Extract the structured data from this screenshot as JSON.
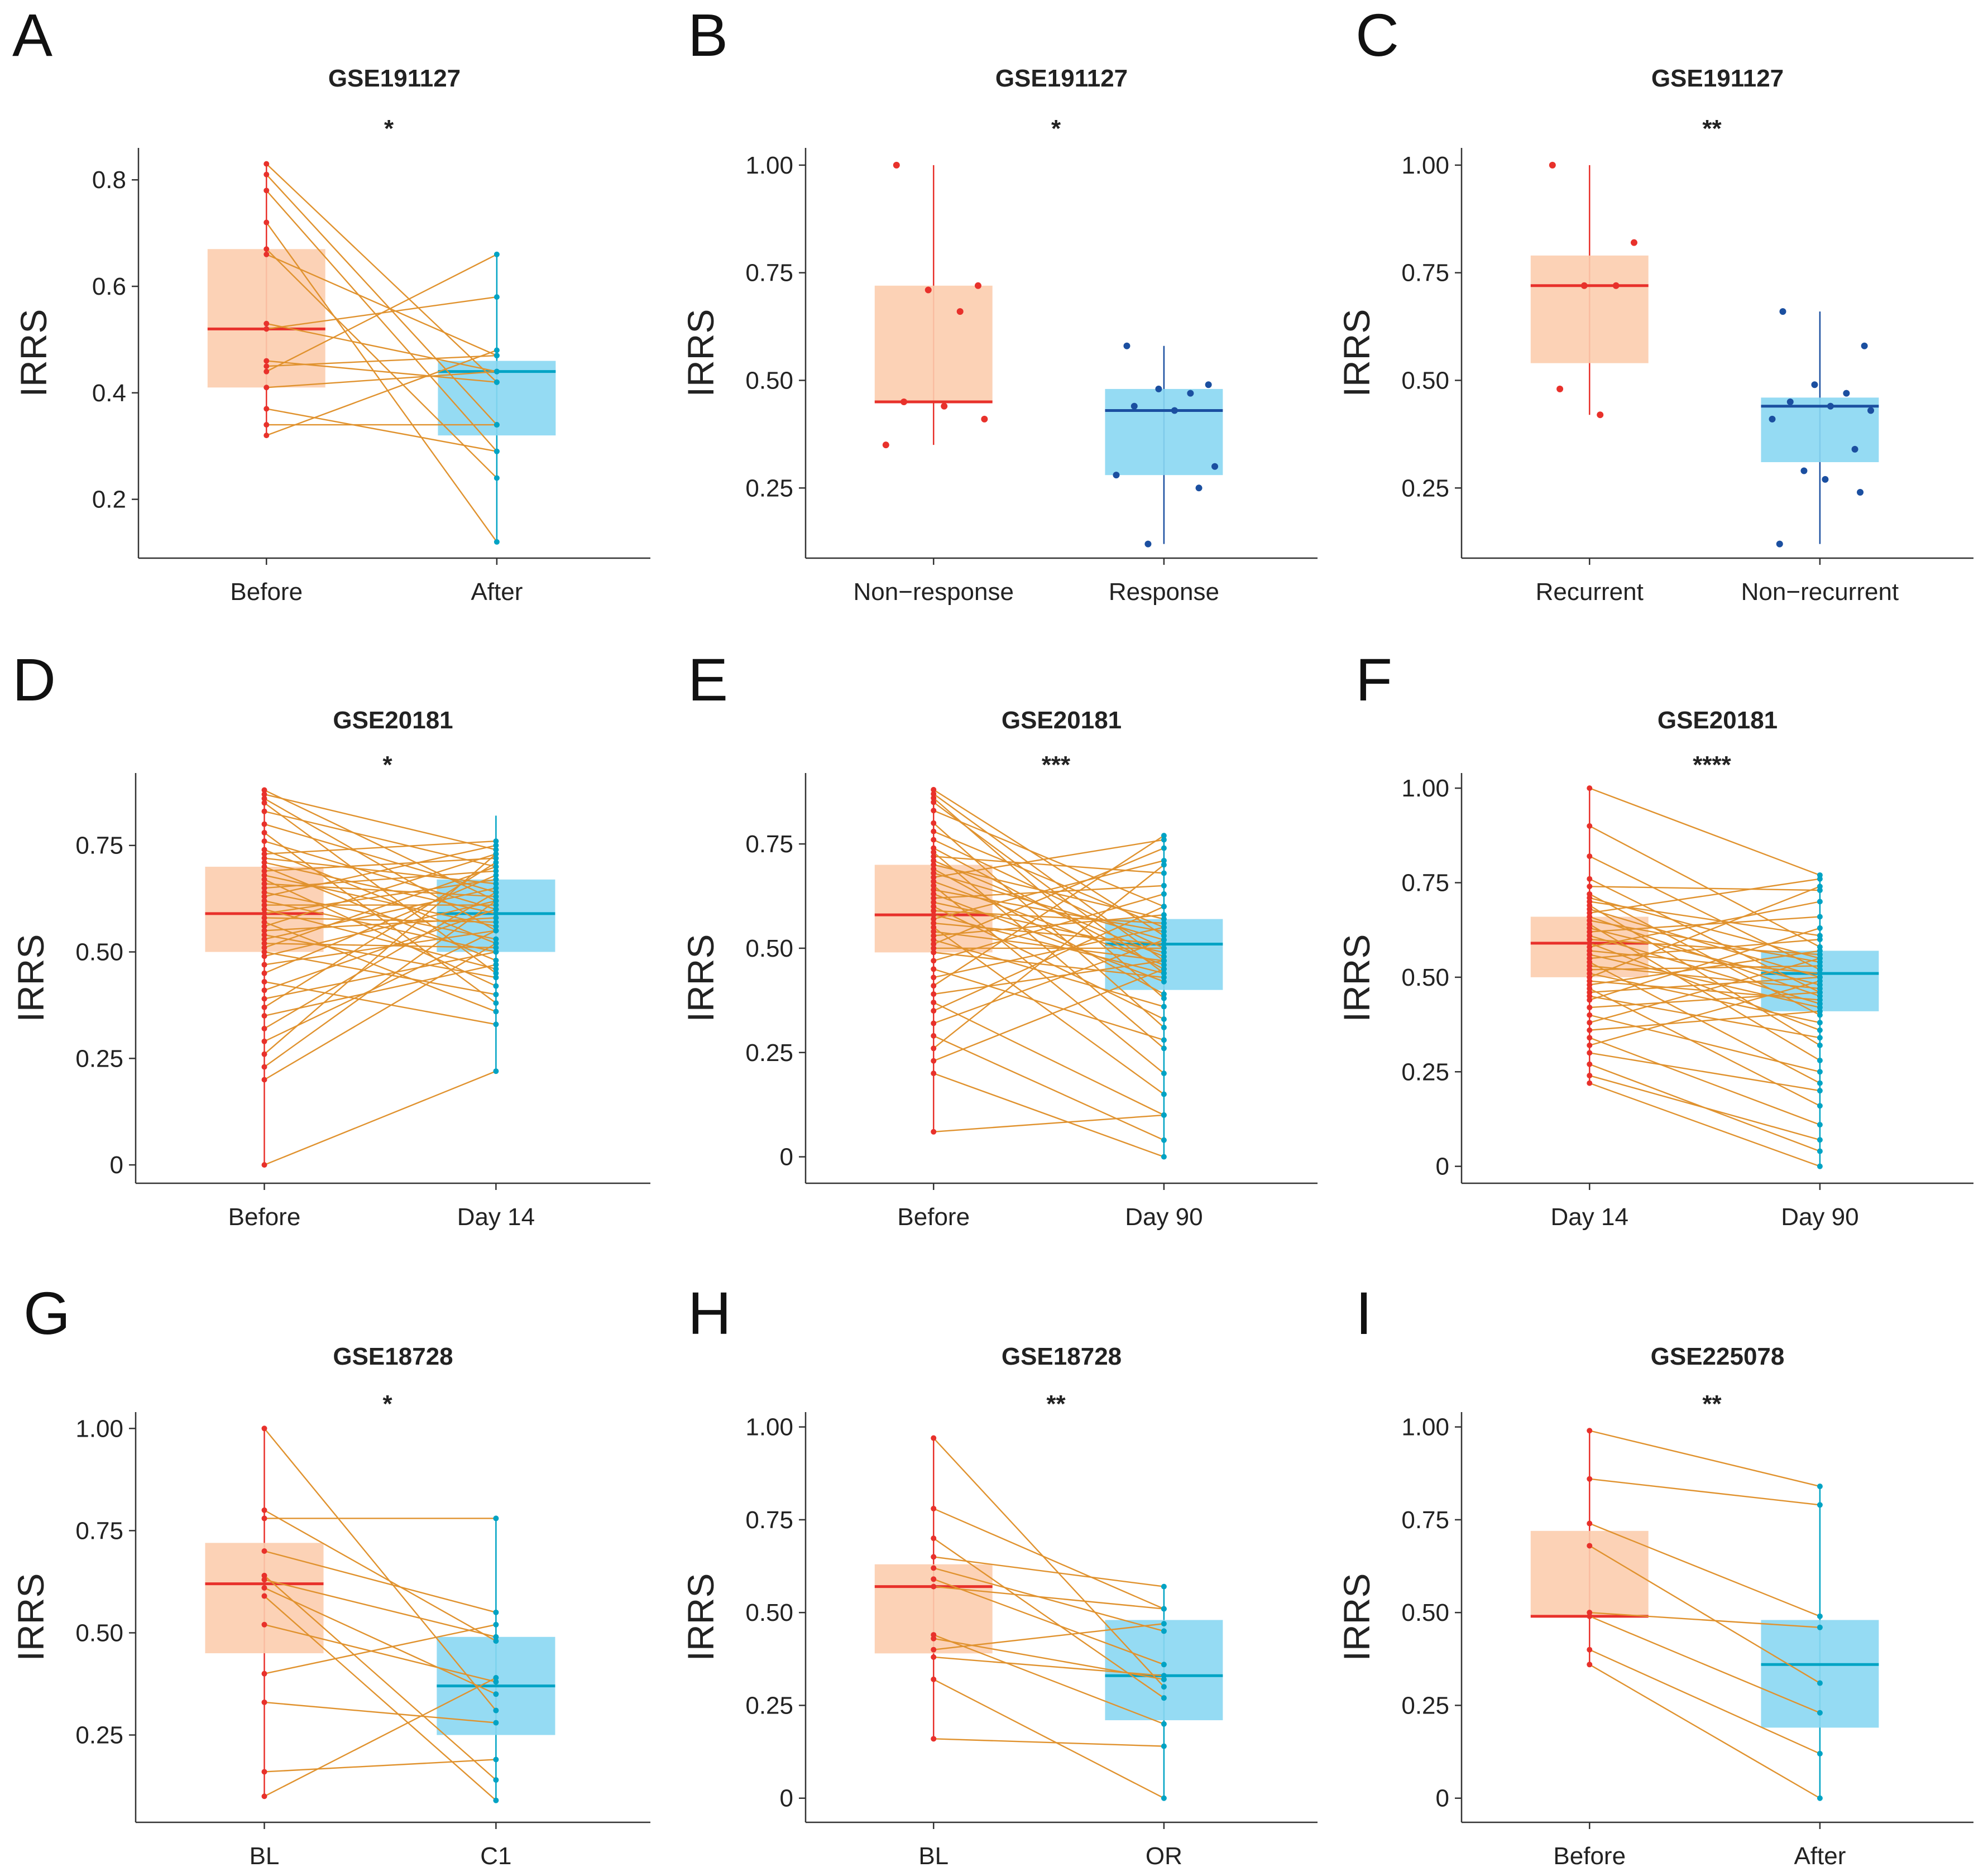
{
  "colors": {
    "box1_fill": "#FCCDAE",
    "box1_stroke": "#E8312B",
    "box2_fill": "#8AD7F2",
    "box2_stroke": "#00A3C4",
    "box2_stroke_dark": "#1B4FA0",
    "pair_line": "#E0922E"
  },
  "chart_data": [
    {
      "panel": "A",
      "type": "box",
      "paired": true,
      "title": "GSE191127",
      "significance": "*",
      "ylabel": "IRRS",
      "categories": [
        "Before",
        "After"
      ],
      "ylim": [
        0.1,
        0.86
      ],
      "yticks": [
        0.2,
        0.4,
        0.6,
        0.8
      ],
      "ytick_labels": [
        "0.2",
        "0.4",
        "0.6",
        "0.8"
      ],
      "boxes": [
        {
          "q1": 0.41,
          "median": 0.52,
          "q3": 0.67,
          "whisker_low": 0.32,
          "whisker_high": 0.83
        },
        {
          "q1": 0.32,
          "median": 0.44,
          "q3": 0.46,
          "whisker_low": 0.12,
          "whisker_high": 0.66
        }
      ],
      "pairs": [
        [
          0.83,
          0.42
        ],
        [
          0.81,
          0.34
        ],
        [
          0.78,
          0.29
        ],
        [
          0.72,
          0.12
        ],
        [
          0.67,
          0.24
        ],
        [
          0.66,
          0.47
        ],
        [
          0.53,
          0.44
        ],
        [
          0.52,
          0.58
        ],
        [
          0.46,
          0.42
        ],
        [
          0.45,
          0.47
        ],
        [
          0.44,
          0.66
        ],
        [
          0.41,
          0.44
        ],
        [
          0.37,
          0.29
        ],
        [
          0.34,
          0.34
        ],
        [
          0.32,
          0.48
        ]
      ]
    },
    {
      "panel": "B",
      "type": "box",
      "paired": false,
      "point_color": "dark",
      "title": "GSE191127",
      "significance": "*",
      "ylabel": "IRRS",
      "categories": [
        "Non−response",
        "Response"
      ],
      "ylim": [
        0.1,
        1.04
      ],
      "yticks": [
        0.25,
        0.5,
        0.75,
        1.0
      ],
      "ytick_labels": [
        "0.25",
        "0.50",
        "0.75",
        "1.00"
      ],
      "boxes": [
        {
          "q1": 0.45,
          "median": 0.45,
          "q3": 0.72,
          "whisker_low": 0.35,
          "whisker_high": 1.0
        },
        {
          "q1": 0.28,
          "median": 0.43,
          "q3": 0.48,
          "whisker_low": 0.12,
          "whisker_high": 0.58
        }
      ],
      "points": [
        [
          1.0,
          0.72,
          0.71,
          0.66,
          0.45,
          0.44,
          0.41,
          0.35
        ],
        [
          0.58,
          0.49,
          0.48,
          0.47,
          0.44,
          0.43,
          0.3,
          0.28,
          0.25,
          0.12
        ]
      ]
    },
    {
      "panel": "C",
      "type": "box",
      "paired": false,
      "point_color": "dark",
      "title": "GSE191127",
      "significance": "**",
      "ylabel": "IRRS",
      "categories": [
        "Recurrent",
        "Non−recurrent"
      ],
      "ylim": [
        0.1,
        1.04
      ],
      "yticks": [
        0.25,
        0.5,
        0.75,
        1.0
      ],
      "ytick_labels": [
        "0.25",
        "0.50",
        "0.75",
        "1.00"
      ],
      "boxes": [
        {
          "q1": 0.54,
          "median": 0.72,
          "q3": 0.79,
          "whisker_low": 0.42,
          "whisker_high": 1.0
        },
        {
          "q1": 0.31,
          "median": 0.44,
          "q3": 0.46,
          "whisker_low": 0.12,
          "whisker_high": 0.66
        }
      ],
      "points": [
        [
          1.0,
          0.82,
          0.72,
          0.72,
          0.48,
          0.42
        ],
        [
          0.66,
          0.58,
          0.49,
          0.47,
          0.45,
          0.44,
          0.43,
          0.41,
          0.34,
          0.29,
          0.27,
          0.24,
          0.12
        ]
      ]
    },
    {
      "panel": "D",
      "type": "box",
      "paired": true,
      "title": "GSE20181",
      "significance": "*",
      "ylabel": "IRRS",
      "categories": [
        "Before",
        "Day 14"
      ],
      "ylim": [
        -0.03,
        0.92
      ],
      "yticks": [
        0,
        0.25,
        0.5,
        0.75
      ],
      "ytick_labels": [
        "0",
        "0.25",
        "0.50",
        "0.75"
      ],
      "boxes": [
        {
          "q1": 0.5,
          "median": 0.59,
          "q3": 0.7,
          "whisker_low": 0.0,
          "whisker_high": 0.88
        },
        {
          "q1": 0.5,
          "median": 0.59,
          "q3": 0.67,
          "whisker_low": 0.22,
          "whisker_high": 0.82
        }
      ],
      "pairs": [
        [
          0.88,
          0.62
        ],
        [
          0.87,
          0.74
        ],
        [
          0.86,
          0.55
        ],
        [
          0.85,
          0.45
        ],
        [
          0.83,
          0.7
        ],
        [
          0.8,
          0.64
        ],
        [
          0.78,
          0.38
        ],
        [
          0.76,
          0.6
        ],
        [
          0.74,
          0.52
        ],
        [
          0.73,
          0.76
        ],
        [
          0.72,
          0.66
        ],
        [
          0.71,
          0.59
        ],
        [
          0.7,
          0.48
        ],
        [
          0.69,
          0.72
        ],
        [
          0.68,
          0.56
        ],
        [
          0.67,
          0.42
        ],
        [
          0.66,
          0.63
        ],
        [
          0.65,
          0.69
        ],
        [
          0.64,
          0.53
        ],
        [
          0.63,
          0.75
        ],
        [
          0.62,
          0.5
        ],
        [
          0.61,
          0.61
        ],
        [
          0.6,
          0.46
        ],
        [
          0.59,
          0.67
        ],
        [
          0.58,
          0.57
        ],
        [
          0.57,
          0.36
        ],
        [
          0.56,
          0.73
        ],
        [
          0.55,
          0.58
        ],
        [
          0.54,
          0.44
        ],
        [
          0.53,
          0.65
        ],
        [
          0.52,
          0.51
        ],
        [
          0.51,
          0.7
        ],
        [
          0.5,
          0.4
        ],
        [
          0.49,
          0.62
        ],
        [
          0.47,
          0.55
        ],
        [
          0.45,
          0.68
        ],
        [
          0.43,
          0.33
        ],
        [
          0.41,
          0.6
        ],
        [
          0.39,
          0.5
        ],
        [
          0.37,
          0.71
        ],
        [
          0.35,
          0.47
        ],
        [
          0.32,
          0.64
        ],
        [
          0.29,
          0.55
        ],
        [
          0.26,
          0.73
        ],
        [
          0.23,
          0.62
        ],
        [
          0.2,
          0.52
        ],
        [
          0.0,
          0.22
        ]
      ]
    },
    {
      "panel": "E",
      "type": "box",
      "paired": true,
      "title": "GSE20181",
      "significance": "***",
      "ylabel": "IRRS",
      "categories": [
        "Before",
        "Day 90"
      ],
      "ylim": [
        -0.05,
        0.92
      ],
      "yticks": [
        0,
        0.25,
        0.5,
        0.75
      ],
      "ytick_labels": [
        "0",
        "0.25",
        "0.50",
        "0.75"
      ],
      "boxes": [
        {
          "q1": 0.49,
          "median": 0.58,
          "q3": 0.7,
          "whisker_low": 0.06,
          "whisker_high": 0.88
        },
        {
          "q1": 0.4,
          "median": 0.51,
          "q3": 0.57,
          "whisker_low": 0.0,
          "whisker_high": 0.77
        }
      ],
      "pairs": [
        [
          0.88,
          0.53
        ],
        [
          0.87,
          0.47
        ],
        [
          0.86,
          0.38
        ],
        [
          0.85,
          0.44
        ],
        [
          0.83,
          0.6
        ],
        [
          0.8,
          0.31
        ],
        [
          0.78,
          0.55
        ],
        [
          0.76,
          0.5
        ],
        [
          0.74,
          0.45
        ],
        [
          0.73,
          0.26
        ],
        [
          0.72,
          0.68
        ],
        [
          0.71,
          0.48
        ],
        [
          0.7,
          0.57
        ],
        [
          0.69,
          0.39
        ],
        [
          0.68,
          0.52
        ],
        [
          0.67,
          0.76
        ],
        [
          0.66,
          0.46
        ],
        [
          0.65,
          0.2
        ],
        [
          0.64,
          0.54
        ],
        [
          0.63,
          0.42
        ],
        [
          0.62,
          0.65
        ],
        [
          0.61,
          0.49
        ],
        [
          0.6,
          0.33
        ],
        [
          0.59,
          0.56
        ],
        [
          0.58,
          0.44
        ],
        [
          0.57,
          0.71
        ],
        [
          0.56,
          0.51
        ],
        [
          0.55,
          0.15
        ],
        [
          0.54,
          0.47
        ],
        [
          0.53,
          0.58
        ],
        [
          0.52,
          0.36
        ],
        [
          0.51,
          0.74
        ],
        [
          0.5,
          0.5
        ],
        [
          0.49,
          0.43
        ],
        [
          0.47,
          0.63
        ],
        [
          0.45,
          0.28
        ],
        [
          0.43,
          0.55
        ],
        [
          0.41,
          0.77
        ],
        [
          0.39,
          0.47
        ],
        [
          0.37,
          0.1
        ],
        [
          0.35,
          0.6
        ],
        [
          0.32,
          0.52
        ],
        [
          0.29,
          0.04
        ],
        [
          0.26,
          0.7
        ],
        [
          0.23,
          0.45
        ],
        [
          0.2,
          0.0
        ],
        [
          0.06,
          0.1
        ]
      ]
    },
    {
      "panel": "F",
      "type": "box",
      "paired": true,
      "title": "GSE20181",
      "significance": "****",
      "ylabel": "IRRS",
      "categories": [
        "Day 14",
        "Day 90"
      ],
      "ylim": [
        -0.03,
        1.04
      ],
      "yticks": [
        0,
        0.25,
        0.5,
        0.75,
        1.0
      ],
      "ytick_labels": [
        "0",
        "0.25",
        "0.50",
        "0.75",
        "1.00"
      ],
      "boxes": [
        {
          "q1": 0.5,
          "median": 0.59,
          "q3": 0.66,
          "whisker_low": 0.22,
          "whisker_high": 1.0
        },
        {
          "q1": 0.41,
          "median": 0.51,
          "q3": 0.57,
          "whisker_low": 0.0,
          "whisker_high": 0.77
        }
      ],
      "pairs": [
        [
          1.0,
          0.77
        ],
        [
          0.9,
          0.58
        ],
        [
          0.82,
          0.52
        ],
        [
          0.76,
          0.46
        ],
        [
          0.74,
          0.73
        ],
        [
          0.72,
          0.4
        ],
        [
          0.71,
          0.55
        ],
        [
          0.7,
          0.61
        ],
        [
          0.69,
          0.32
        ],
        [
          0.68,
          0.5
        ],
        [
          0.67,
          0.76
        ],
        [
          0.66,
          0.45
        ],
        [
          0.65,
          0.54
        ],
        [
          0.64,
          0.28
        ],
        [
          0.63,
          0.48
        ],
        [
          0.62,
          0.66
        ],
        [
          0.61,
          0.43
        ],
        [
          0.6,
          0.56
        ],
        [
          0.59,
          0.36
        ],
        [
          0.58,
          0.7
        ],
        [
          0.57,
          0.51
        ],
        [
          0.56,
          0.42
        ],
        [
          0.55,
          0.6
        ],
        [
          0.54,
          0.22
        ],
        [
          0.53,
          0.47
        ],
        [
          0.52,
          0.53
        ],
        [
          0.51,
          0.38
        ],
        [
          0.5,
          0.74
        ],
        [
          0.49,
          0.44
        ],
        [
          0.48,
          0.57
        ],
        [
          0.47,
          0.16
        ],
        [
          0.46,
          0.5
        ],
        [
          0.45,
          0.34
        ],
        [
          0.44,
          0.63
        ],
        [
          0.42,
          0.46
        ],
        [
          0.4,
          0.25
        ],
        [
          0.38,
          0.55
        ],
        [
          0.36,
          0.41
        ],
        [
          0.34,
          0.11
        ],
        [
          0.32,
          0.49
        ],
        [
          0.3,
          0.2
        ],
        [
          0.27,
          0.04
        ],
        [
          0.24,
          0.07
        ],
        [
          0.22,
          0.0
        ]
      ]
    },
    {
      "panel": "G",
      "type": "box",
      "paired": true,
      "title": "GSE18728",
      "significance": "*",
      "ylabel": "IRRS",
      "categories": [
        "BL",
        "C1"
      ],
      "ylim": [
        0.05,
        1.04
      ],
      "yticks": [
        0.25,
        0.5,
        0.75,
        1.0
      ],
      "ytick_labels": [
        "0.25",
        "0.50",
        "0.75",
        "1.00"
      ],
      "boxes": [
        {
          "q1": 0.45,
          "median": 0.62,
          "q3": 0.72,
          "whisker_low": 0.1,
          "whisker_high": 1.0
        },
        {
          "q1": 0.25,
          "median": 0.37,
          "q3": 0.49,
          "whisker_low": 0.09,
          "whisker_high": 0.78
        }
      ],
      "pairs": [
        [
          1.0,
          0.31
        ],
        [
          0.8,
          0.48
        ],
        [
          0.78,
          0.78
        ],
        [
          0.7,
          0.55
        ],
        [
          0.64,
          0.14
        ],
        [
          0.63,
          0.49
        ],
        [
          0.61,
          0.35
        ],
        [
          0.59,
          0.09
        ],
        [
          0.52,
          0.38
        ],
        [
          0.4,
          0.52
        ],
        [
          0.33,
          0.28
        ],
        [
          0.16,
          0.19
        ],
        [
          0.1,
          0.39
        ]
      ]
    },
    {
      "panel": "H",
      "type": "box",
      "paired": true,
      "title": "GSE18728",
      "significance": "**",
      "ylabel": "IRRS",
      "categories": [
        "BL",
        "OR"
      ],
      "ylim": [
        -0.05,
        1.04
      ],
      "yticks": [
        0,
        0.25,
        0.5,
        0.75,
        1.0
      ],
      "ytick_labels": [
        "0",
        "0.25",
        "0.50",
        "0.75",
        "1.00"
      ],
      "boxes": [
        {
          "q1": 0.39,
          "median": 0.57,
          "q3": 0.63,
          "whisker_low": 0.16,
          "whisker_high": 0.97
        },
        {
          "q1": 0.21,
          "median": 0.33,
          "q3": 0.48,
          "whisker_low": 0.0,
          "whisker_high": 0.57
        }
      ],
      "pairs": [
        [
          0.97,
          0.3
        ],
        [
          0.78,
          0.51
        ],
        [
          0.7,
          0.27
        ],
        [
          0.65,
          0.57
        ],
        [
          0.62,
          0.45
        ],
        [
          0.59,
          0.36
        ],
        [
          0.57,
          0.51
        ],
        [
          0.44,
          0.2
        ],
        [
          0.43,
          0.32
        ],
        [
          0.4,
          0.47
        ],
        [
          0.38,
          0.33
        ],
        [
          0.32,
          0.0
        ],
        [
          0.16,
          0.14
        ]
      ]
    },
    {
      "panel": "I",
      "type": "box",
      "paired": true,
      "title": "GSE225078",
      "significance": "**",
      "ylabel": "IRRS",
      "categories": [
        "Before",
        "After"
      ],
      "ylim": [
        -0.05,
        1.04
      ],
      "yticks": [
        0,
        0.25,
        0.5,
        0.75,
        1.0
      ],
      "ytick_labels": [
        "0",
        "0.25",
        "0.50",
        "0.75",
        "1.00"
      ],
      "boxes": [
        {
          "q1": 0.49,
          "median": 0.49,
          "q3": 0.72,
          "whisker_low": 0.36,
          "whisker_high": 0.99
        },
        {
          "q1": 0.19,
          "median": 0.36,
          "q3": 0.48,
          "whisker_low": 0.0,
          "whisker_high": 0.84
        }
      ],
      "pairs": [
        [
          0.99,
          0.84
        ],
        [
          0.86,
          0.79
        ],
        [
          0.74,
          0.49
        ],
        [
          0.68,
          0.31
        ],
        [
          0.5,
          0.46
        ],
        [
          0.49,
          0.23
        ],
        [
          0.4,
          0.12
        ],
        [
          0.36,
          0.0
        ]
      ]
    }
  ]
}
